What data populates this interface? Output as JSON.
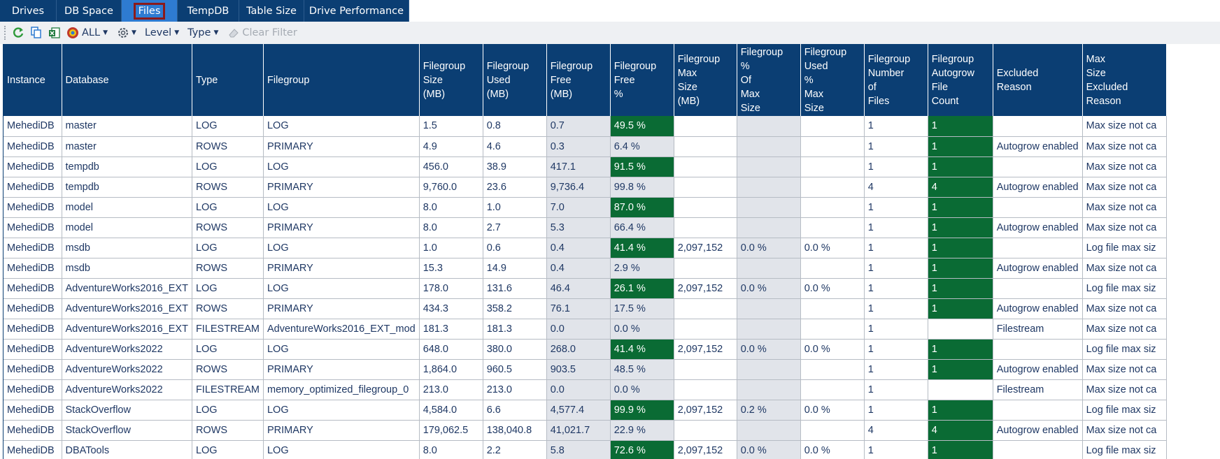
{
  "tabs": [
    {
      "label": "Drives"
    },
    {
      "label": "DB Space"
    },
    {
      "label": "Files",
      "active": true
    },
    {
      "label": "TempDB"
    },
    {
      "label": "Table Size"
    },
    {
      "label": "Drive Performance"
    }
  ],
  "toolbar": {
    "icons": [
      "refresh-icon",
      "copy-icon",
      "excel-icon",
      "instance-icon",
      "settings-icon",
      "eraser-icon"
    ],
    "all_label": "ALL",
    "level_label": "Level",
    "type_label": "Type",
    "clear_filter_label": "Clear Filter"
  },
  "grid": {
    "columns": [
      "Instance",
      "Database",
      "Type",
      "Filegroup",
      "Filegroup\nSize\n(MB)",
      "Filegroup\nUsed\n(MB)",
      "Filegroup\nFree\n(MB)",
      "Filegroup\nFree\n%",
      "Filegroup\nMax\nSize\n(MB)",
      "Filegroup\n%\nOf\nMax\nSize",
      "Filegroup\nUsed\n%\nMax\nSize",
      "Filegroup\nNumber\nof\nFiles",
      "Filegroup\nAutogrow\nFile\nCount",
      "Excluded\nReason",
      "Max\nSize\nExcluded\nReason"
    ],
    "rows": [
      [
        "MehediDB",
        "master",
        "LOG",
        "LOG",
        "1.5",
        "0.8",
        "0.7",
        "49.5 %",
        "",
        "",
        "",
        "1",
        "1",
        "",
        "Max size not ca"
      ],
      [
        "MehediDB",
        "master",
        "ROWS",
        "PRIMARY",
        "4.9",
        "4.6",
        "0.3",
        "6.4 %",
        "",
        "",
        "",
        "1",
        "1",
        "Autogrow enabled",
        "Max size not ca"
      ],
      [
        "MehediDB",
        "tempdb",
        "LOG",
        "LOG",
        "456.0",
        "38.9",
        "417.1",
        "91.5 %",
        "",
        "",
        "",
        "1",
        "1",
        "",
        "Max size not ca"
      ],
      [
        "MehediDB",
        "tempdb",
        "ROWS",
        "PRIMARY",
        "9,760.0",
        "23.6",
        "9,736.4",
        "99.8 %",
        "",
        "",
        "",
        "4",
        "4",
        "Autogrow enabled",
        "Max size not ca"
      ],
      [
        "MehediDB",
        "model",
        "LOG",
        "LOG",
        "8.0",
        "1.0",
        "7.0",
        "87.0 %",
        "",
        "",
        "",
        "1",
        "1",
        "",
        "Max size not ca"
      ],
      [
        "MehediDB",
        "model",
        "ROWS",
        "PRIMARY",
        "8.0",
        "2.7",
        "5.3",
        "66.4 %",
        "",
        "",
        "",
        "1",
        "1",
        "Autogrow enabled",
        "Max size not ca"
      ],
      [
        "MehediDB",
        "msdb",
        "LOG",
        "LOG",
        "1.0",
        "0.6",
        "0.4",
        "41.4 %",
        "2,097,152",
        "0.0 %",
        "0.0 %",
        "1",
        "1",
        "",
        "Log file max siz"
      ],
      [
        "MehediDB",
        "msdb",
        "ROWS",
        "PRIMARY",
        "15.3",
        "14.9",
        "0.4",
        "2.9 %",
        "",
        "",
        "",
        "1",
        "1",
        "Autogrow enabled",
        "Max size not ca"
      ],
      [
        "MehediDB",
        "AdventureWorks2016_EXT",
        "LOG",
        "LOG",
        "178.0",
        "131.6",
        "46.4",
        "26.1 %",
        "2,097,152",
        "0.0 %",
        "0.0 %",
        "1",
        "1",
        "",
        "Log file max siz"
      ],
      [
        "MehediDB",
        "AdventureWorks2016_EXT",
        "ROWS",
        "PRIMARY",
        "434.3",
        "358.2",
        "76.1",
        "17.5 %",
        "",
        "",
        "",
        "1",
        "1",
        "Autogrow enabled",
        "Max size not ca"
      ],
      [
        "MehediDB",
        "AdventureWorks2016_EXT",
        "FILESTREAM",
        "AdventureWorks2016_EXT_mod",
        "181.3",
        "181.3",
        "0.0",
        "0.0 %",
        "",
        "",
        "",
        "1",
        "",
        "Filestream",
        "Max size not ca"
      ],
      [
        "MehediDB",
        "AdventureWorks2022",
        "LOG",
        "LOG",
        "648.0",
        "380.0",
        "268.0",
        "41.4 %",
        "2,097,152",
        "0.0 %",
        "0.0 %",
        "1",
        "1",
        "",
        "Log file max siz"
      ],
      [
        "MehediDB",
        "AdventureWorks2022",
        "ROWS",
        "PRIMARY",
        "1,864.0",
        "960.5",
        "903.5",
        "48.5 %",
        "",
        "",
        "",
        "1",
        "1",
        "Autogrow enabled",
        "Max size not ca"
      ],
      [
        "MehediDB",
        "AdventureWorks2022",
        "FILESTREAM",
        "memory_optimized_filegroup_0",
        "213.0",
        "213.0",
        "0.0",
        "0.0 %",
        "",
        "",
        "",
        "1",
        "",
        "Filestream",
        "Max size not ca"
      ],
      [
        "MehediDB",
        "StackOverflow",
        "LOG",
        "LOG",
        "4,584.0",
        "6.6",
        "4,577.4",
        "99.9 %",
        "2,097,152",
        "0.2 %",
        "0.0 %",
        "1",
        "1",
        "",
        "Log file max siz"
      ],
      [
        "MehediDB",
        "StackOverflow",
        "ROWS",
        "PRIMARY",
        "179,062.5",
        "138,040.8",
        "41,021.7",
        "22.9 %",
        "",
        "",
        "",
        "4",
        "4",
        "Autogrow enabled",
        "Max size not ca"
      ],
      [
        "MehediDB",
        "DBATools",
        "LOG",
        "LOG",
        "8.0",
        "2.2",
        "5.8",
        "72.6 %",
        "2,097,152",
        "0.0 %",
        "0.0 %",
        "1",
        "1",
        "",
        "Log file max siz"
      ]
    ],
    "free_pct_highlight": [
      true,
      false,
      true,
      false,
      true,
      false,
      true,
      false,
      true,
      false,
      false,
      true,
      false,
      false,
      true,
      false,
      true
    ],
    "colors": {
      "header_bg": "#0b3e73",
      "highlight_green": "#0a6b34",
      "grey_cell": "#e1e4ea",
      "active_tab": "#2e7bd1",
      "active_tab_outline": "#8b1a1a"
    }
  }
}
